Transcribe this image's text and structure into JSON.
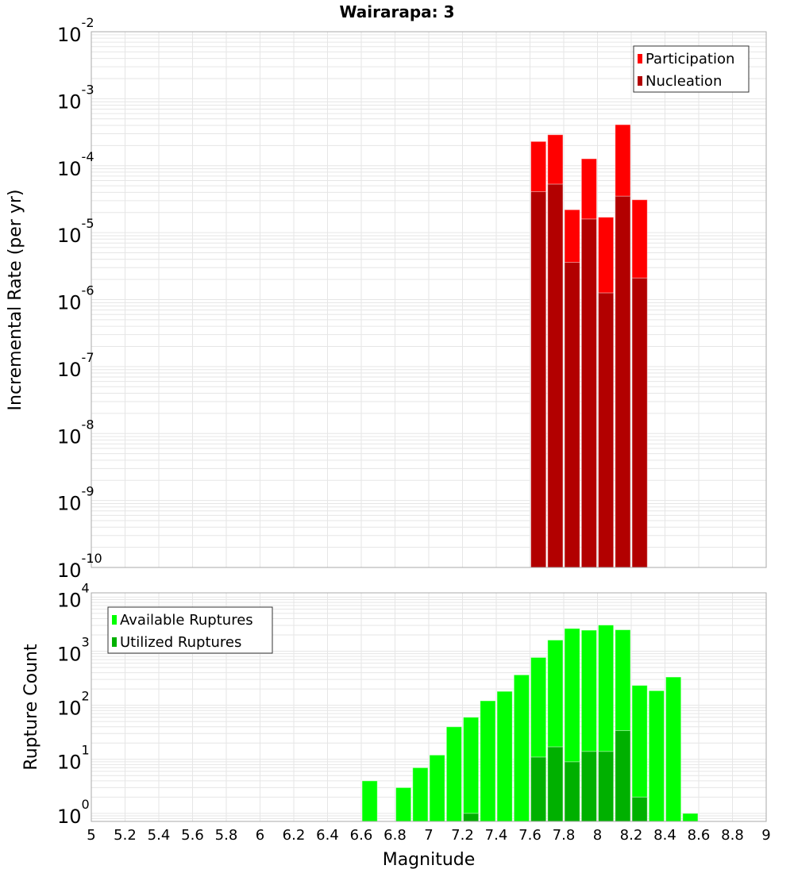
{
  "title": "Wairarapa: 3",
  "colors": {
    "participation": "#ff0000",
    "nucleation": "#b20000",
    "available": "#00ff00",
    "utilized": "#00b000",
    "grid": "#e6e6e6",
    "frame": "#aaaaaa"
  },
  "chart_data": [
    {
      "type": "bar",
      "title": "Wairarapa: 3",
      "xlabel": "Magnitude",
      "ylabel": "Incremental Rate (per yr)",
      "yscale": "log",
      "ylim": [
        1e-10,
        0.01
      ],
      "xlim": [
        5,
        9
      ],
      "y_tick_exponents": [
        "-10",
        "-9",
        "-8",
        "-7",
        "-6",
        "-5",
        "-4",
        "-3",
        "-2"
      ],
      "bin_width": 0.1,
      "legend": "top-right",
      "x": [
        7.65,
        7.75,
        7.85,
        7.95,
        8.05,
        8.15,
        8.25
      ],
      "series": [
        {
          "name": "Participation",
          "values": [
            0.00023,
            0.00029,
            2.2e-05,
            0.000127,
            1.7e-05,
            0.00041,
            3.1e-05
          ]
        },
        {
          "name": "Nucleation",
          "values": [
            4.1e-05,
            5.3e-05,
            3.6e-06,
            1.6e-05,
            1.26e-06,
            3.5e-05,
            2.1e-06
          ]
        }
      ]
    },
    {
      "type": "bar",
      "xlabel": "Magnitude",
      "ylabel": "Rupture Count",
      "yscale": "log",
      "ylim": [
        0.71,
        12000
      ],
      "xlim": [
        5,
        9
      ],
      "y_tick_exponents": [
        "0",
        "1",
        "2",
        "3",
        "4"
      ],
      "x_ticks": [
        "5",
        "5.2",
        "5.4",
        "5.6",
        "5.8",
        "6",
        "6.2",
        "6.4",
        "6.6",
        "6.8",
        "7",
        "7.2",
        "7.4",
        "7.6",
        "7.8",
        "8",
        "8.2",
        "8.4",
        "8.6",
        "8.8",
        "9"
      ],
      "bin_width": 0.1,
      "legend": "top-left",
      "x": [
        6.65,
        6.85,
        6.95,
        7.05,
        7.15,
        7.25,
        7.35,
        7.45,
        7.55,
        7.65,
        7.75,
        7.85,
        7.95,
        8.05,
        8.15,
        8.25,
        8.35,
        8.45,
        8.55
      ],
      "series": [
        {
          "name": "Available Ruptures",
          "values": [
            4,
            3,
            7,
            12,
            40,
            60,
            121,
            181,
            365,
            766,
            1608,
            2630,
            2450,
            3050,
            2490,
            233,
            186,
            333,
            1
          ]
        },
        {
          "name": "Utilized Ruptures",
          "values": [
            0,
            0,
            0,
            0,
            0,
            1,
            0,
            0,
            0,
            11,
            17,
            9,
            14,
            14,
            34,
            2,
            0,
            0,
            0
          ]
        }
      ]
    }
  ]
}
